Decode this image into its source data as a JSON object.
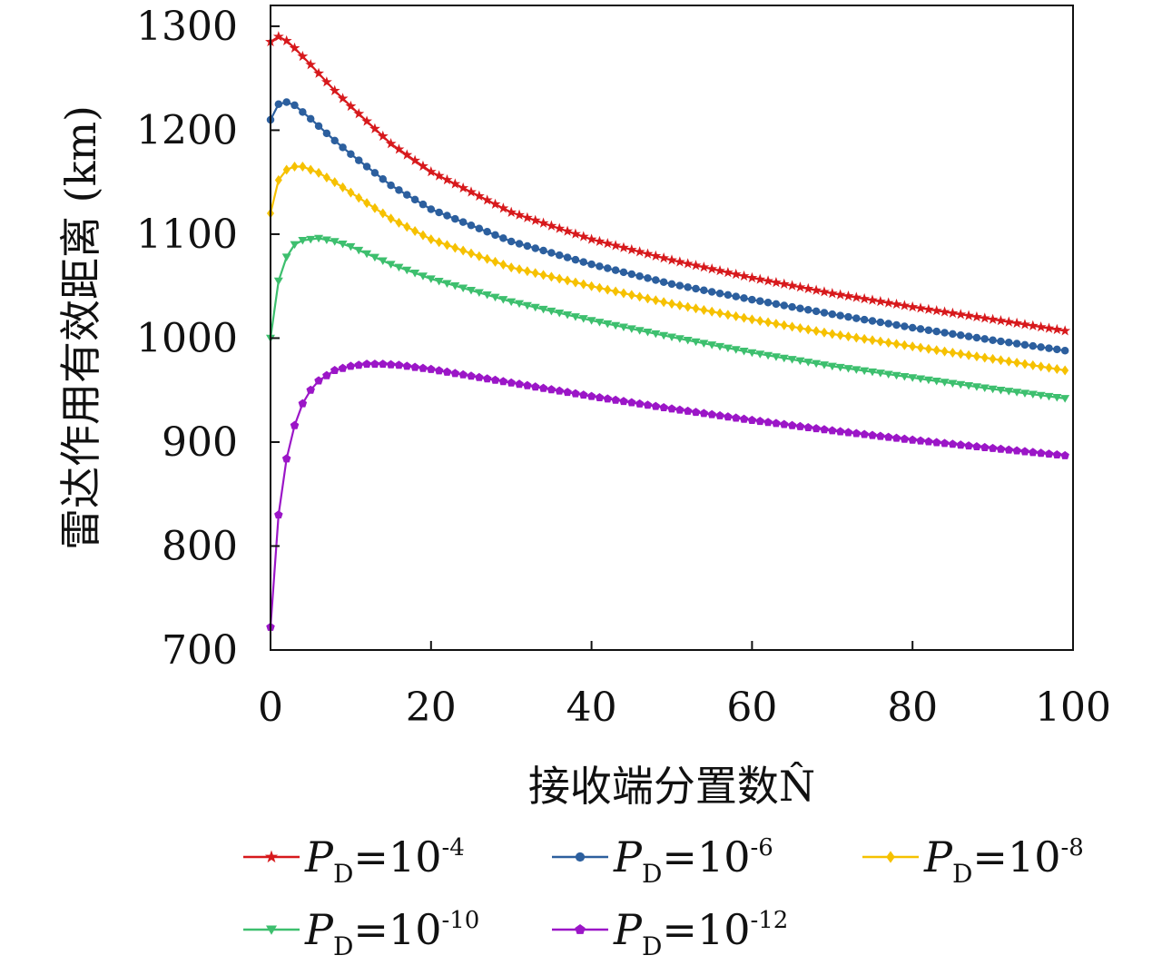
{
  "chart_data": {
    "type": "line",
    "title": "",
    "xlabel": "接收端分置数N̂",
    "ylabel": "雷达作用有效距离 (km)",
    "xlim": [
      0,
      100
    ],
    "ylim": [
      700,
      1320
    ],
    "xticks": [
      0,
      20,
      40,
      60,
      80,
      100
    ],
    "yticks": [
      700,
      800,
      900,
      1000,
      1100,
      1200,
      1300
    ],
    "grid": false,
    "legend_position": "bottom",
    "series": [
      {
        "name": "P_D=10^-4",
        "label_main": "P",
        "label_sub": "D",
        "label_eq": "=10",
        "label_sup": "-4",
        "color": "#d7191c",
        "marker": "star",
        "x": [
          0,
          1,
          2,
          3,
          5,
          8,
          10,
          15,
          20,
          30,
          40,
          50,
          60,
          70,
          80,
          90,
          99
        ],
        "y": [
          1285,
          1290,
          1286,
          1279,
          1263,
          1238,
          1223,
          1187,
          1160,
          1121,
          1095,
          1075,
          1058,
          1043,
          1030,
          1018,
          1007
        ]
      },
      {
        "name": "P_D=10^-6",
        "label_main": "P",
        "label_sub": "D",
        "label_eq": "=10",
        "label_sup": "-6",
        "color": "#2c5f9e",
        "marker": "circle",
        "x": [
          0,
          1,
          2,
          3,
          5,
          8,
          10,
          15,
          20,
          30,
          40,
          50,
          60,
          70,
          80,
          90,
          99
        ],
        "y": [
          1210,
          1225,
          1227,
          1224,
          1211,
          1190,
          1177,
          1147,
          1124,
          1093,
          1071,
          1052,
          1037,
          1023,
          1010,
          998,
          988
        ]
      },
      {
        "name": "P_D=10^-8",
        "label_main": "P",
        "label_sub": "D",
        "label_eq": "=10",
        "label_sup": "-8",
        "color": "#f6c100",
        "marker": "diamond",
        "x": [
          0,
          1,
          2,
          3,
          4,
          6,
          8,
          10,
          15,
          20,
          30,
          40,
          50,
          60,
          70,
          80,
          90,
          99
        ],
        "y": [
          1120,
          1152,
          1162,
          1165,
          1165,
          1159,
          1150,
          1140,
          1115,
          1095,
          1068,
          1050,
          1033,
          1018,
          1004,
          992,
          980,
          969
        ]
      },
      {
        "name": "P_D=10^-10",
        "label_main": "P",
        "label_sub": "D",
        "label_eq": "=10",
        "label_sup": "-10",
        "color": "#3dbf6e",
        "marker": "triangle-down",
        "x": [
          0,
          1,
          2,
          3,
          4,
          6,
          8,
          10,
          15,
          20,
          30,
          40,
          50,
          60,
          70,
          80,
          90,
          99
        ],
        "y": [
          1000,
          1055,
          1078,
          1090,
          1094,
          1096,
          1093,
          1088,
          1071,
          1057,
          1035,
          1017,
          1001,
          986,
          973,
          962,
          951,
          942
        ]
      },
      {
        "name": "P_D=10^-12",
        "label_main": "P",
        "label_sub": "D",
        "label_eq": "=10",
        "label_sup": "-12",
        "color": "#9b16c7",
        "marker": "pentagon",
        "x": [
          0,
          1,
          2,
          3,
          4,
          5,
          6,
          8,
          10,
          12,
          14,
          16,
          20,
          30,
          40,
          50,
          60,
          70,
          80,
          90,
          99
        ],
        "y": [
          722,
          830,
          884,
          916,
          937,
          950,
          959,
          969,
          973,
          975,
          975,
          974,
          970,
          957,
          944,
          932,
          921,
          911,
          902,
          894,
          887
        ]
      }
    ]
  }
}
